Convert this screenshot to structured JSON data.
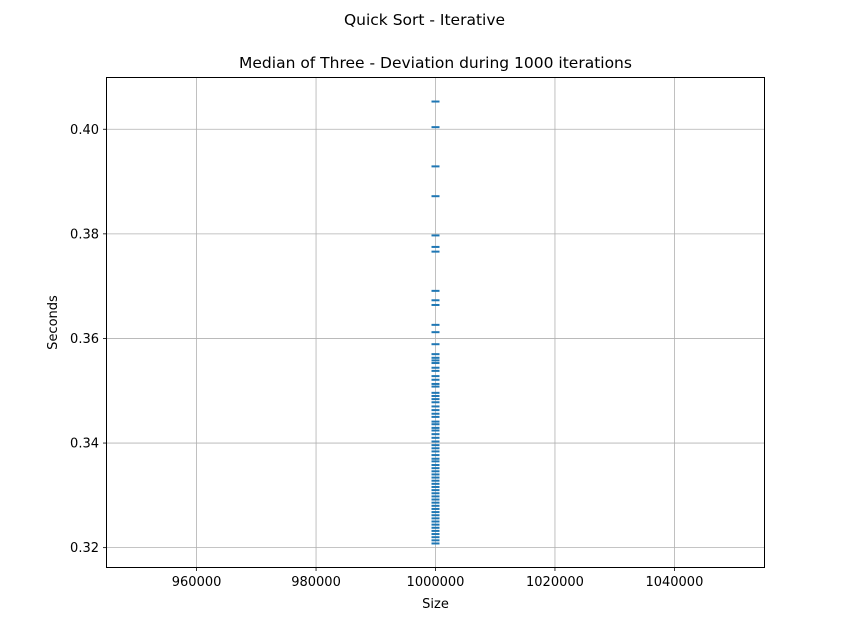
{
  "chart_data": {
    "type": "scatter",
    "suptitle": "Quick Sort - Iterative",
    "title": "Median of Three - Deviation during 1000 iterations",
    "xlabel": "Size",
    "ylabel": "Seconds",
    "xlim": [
      945000,
      1055000
    ],
    "ylim": [
      0.3163,
      0.4098
    ],
    "grid": true,
    "x_ticks": [
      960000,
      980000,
      1000000,
      1020000,
      1040000
    ],
    "x_tick_labels": [
      "960000",
      "980000",
      "1000000",
      "1020000",
      "1040000"
    ],
    "y_ticks": [
      0.32,
      0.34,
      0.36,
      0.38,
      0.4
    ],
    "y_tick_labels": [
      "0.32",
      "0.34",
      "0.36",
      "0.38",
      "0.40"
    ],
    "marker": "horizontal-line",
    "color": "#1f77b4",
    "series": [
      {
        "x": 1000000,
        "y": [
          0.4053,
          0.4004,
          0.3929,
          0.3872,
          0.3797,
          0.3775,
          0.3766,
          0.3691,
          0.3673,
          0.3664,
          0.3626,
          0.3612,
          0.3589,
          0.357,
          0.3563,
          0.3558,
          0.3553,
          0.3544,
          0.3538,
          0.3528,
          0.3521,
          0.3513,
          0.3508,
          0.3496,
          0.349,
          0.3484,
          0.3478,
          0.347,
          0.3463,
          0.3456,
          0.345,
          0.3441,
          0.3436,
          0.3429,
          0.3424,
          0.3417,
          0.341,
          0.3403,
          0.3396,
          0.339,
          0.3384,
          0.3377,
          0.337,
          0.3365,
          0.3358,
          0.3352,
          0.3346,
          0.334,
          0.3334,
          0.3328,
          0.3322,
          0.3316,
          0.331,
          0.3304,
          0.3298,
          0.3292,
          0.3286,
          0.328,
          0.3274,
          0.3268,
          0.3262,
          0.3256,
          0.325,
          0.3244,
          0.3238,
          0.3232,
          0.3226,
          0.322,
          0.3214,
          0.3208
        ]
      }
    ]
  }
}
